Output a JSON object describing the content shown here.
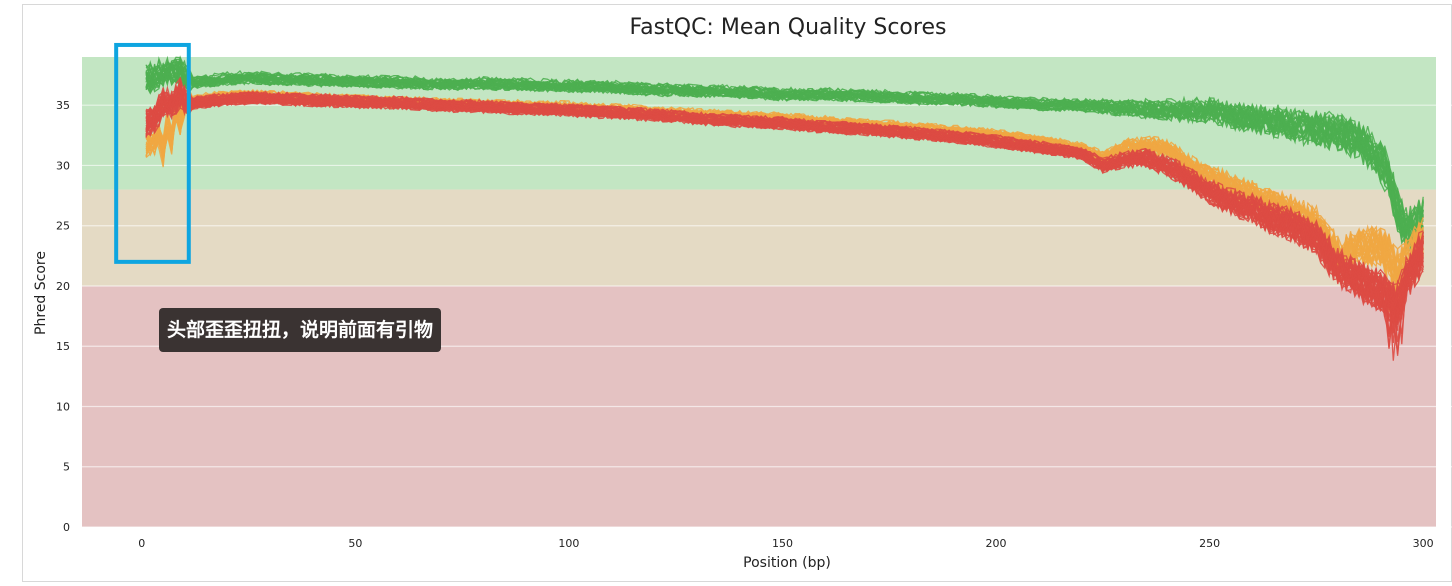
{
  "chart_data": {
    "type": "line",
    "title": "FastQC: Mean Quality Scores",
    "xlabel": "Position (bp)",
    "ylabel": "Phred Score",
    "xlim": [
      -14,
      303
    ],
    "ylim": [
      0,
      39
    ],
    "x_ticks": [
      0,
      50,
      100,
      150,
      200,
      250,
      300
    ],
    "y_ticks": [
      0,
      5,
      10,
      15,
      20,
      25,
      30,
      35
    ],
    "grid": true,
    "bands": [
      {
        "from": 28,
        "to": 39,
        "color": "#c3e6c3"
      },
      {
        "from": 20,
        "to": 28,
        "color": "#e4dac4"
      },
      {
        "from": 0,
        "to": 20,
        "color": "#e4c2c2"
      }
    ],
    "series_groups": [
      {
        "color": "#4caf50",
        "x": [
          1,
          3,
          4,
          5,
          7,
          9,
          10,
          12,
          15,
          20,
          25,
          30,
          40,
          50,
          60,
          70,
          80,
          90,
          100,
          110,
          120,
          130,
          140,
          150,
          160,
          170,
          180,
          190,
          200,
          210,
          220,
          230,
          240,
          250,
          255,
          260,
          265,
          270,
          275,
          280,
          285,
          290,
          292,
          294,
          296,
          300
        ],
        "y": [
          37.2,
          37.4,
          37.5,
          37.6,
          37.7,
          37.8,
          37.5,
          36.9,
          37.0,
          37.2,
          37.3,
          37.2,
          37.1,
          37.0,
          36.9,
          36.8,
          36.8,
          36.7,
          36.6,
          36.5,
          36.3,
          36.2,
          36.1,
          35.9,
          35.9,
          35.8,
          35.6,
          35.5,
          35.3,
          35.1,
          35.0,
          34.8,
          34.6,
          34.6,
          34.2,
          33.9,
          33.7,
          33.3,
          33.1,
          32.8,
          32.2,
          30.5,
          29.0,
          26.5,
          24.5,
          25.5
        ],
        "count": 30
      },
      {
        "color": "#f0a742",
        "x": [
          1,
          3,
          4,
          5,
          6,
          7,
          8,
          9,
          10,
          12,
          15,
          20,
          25,
          30,
          40,
          50,
          60,
          70,
          80,
          90,
          100,
          110,
          120,
          130,
          140,
          150,
          160,
          170,
          180,
          190,
          200,
          210,
          220,
          225,
          230,
          235,
          240,
          245,
          250,
          255,
          260,
          265,
          270,
          275,
          280,
          285,
          290,
          292,
          294,
          296,
          300
        ],
        "y": [
          31.5,
          31.8,
          32.5,
          31.2,
          33.5,
          32.0,
          34.5,
          33.5,
          35.0,
          35.2,
          35.5,
          35.7,
          35.8,
          35.7,
          35.5,
          35.4,
          35.2,
          35.1,
          35.0,
          34.9,
          34.8,
          34.6,
          34.4,
          34.2,
          34.0,
          33.9,
          33.6,
          33.3,
          33.1,
          32.8,
          32.5,
          32.0,
          31.4,
          30.6,
          31.5,
          31.6,
          31.4,
          30.0,
          29.0,
          28.2,
          27.5,
          26.7,
          26.0,
          25.0,
          22.6,
          23.1,
          23.3,
          22.5,
          21.5,
          22.0,
          24.0
        ],
        "count": 30
      },
      {
        "color": "#dd4b44",
        "x": [
          1,
          3,
          5,
          7,
          9,
          10,
          12,
          15,
          20,
          25,
          30,
          40,
          50,
          60,
          70,
          80,
          90,
          100,
          110,
          120,
          130,
          140,
          150,
          160,
          170,
          180,
          190,
          200,
          210,
          220,
          225,
          230,
          235,
          240,
          245,
          250,
          255,
          260,
          265,
          270,
          275,
          280,
          285,
          290,
          292,
          294,
          296,
          300
        ],
        "y": [
          33.5,
          34.0,
          35.2,
          35.0,
          36.0,
          35.5,
          35.2,
          35.3,
          35.5,
          35.6,
          35.6,
          35.4,
          35.3,
          35.2,
          35.0,
          34.9,
          34.7,
          34.6,
          34.4,
          34.2,
          33.9,
          33.7,
          33.5,
          33.2,
          33.0,
          32.7,
          32.4,
          32.0,
          31.5,
          31.0,
          30.0,
          30.5,
          30.6,
          30.0,
          29.0,
          27.8,
          27.0,
          26.5,
          25.5,
          25.0,
          24.0,
          21.5,
          20.5,
          19.5,
          19.0,
          18.5,
          20.5,
          23.0
        ],
        "count": 40
      }
    ]
  },
  "annotation": {
    "text": "头部歪歪扭扭，说明前面有引物",
    "highlight_color": "#0ea5e0",
    "highlight_x_range": [
      -6,
      11
    ],
    "highlight_y_range": [
      22,
      40
    ]
  }
}
